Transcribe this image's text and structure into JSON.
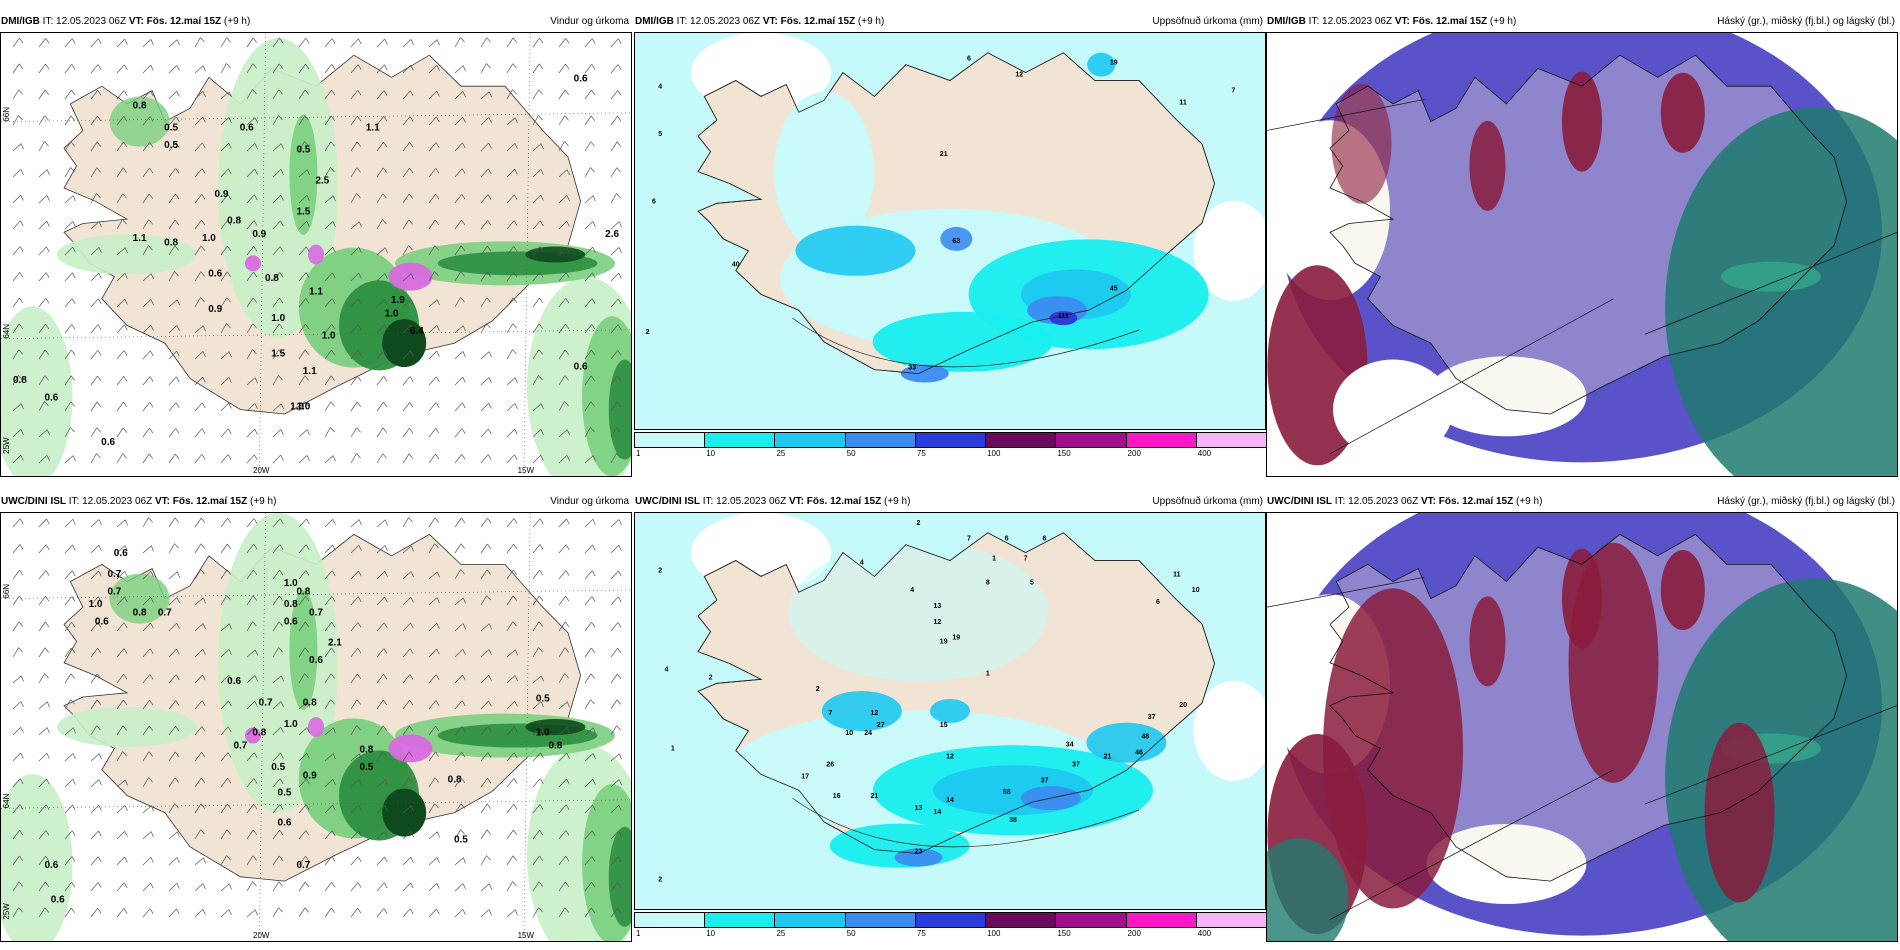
{
  "colors": {
    "land": "#f2e4d4",
    "sea": "#ffffff",
    "green1": "#c8efc8",
    "green2": "#7bcf80",
    "green3": "#2d8f40",
    "green4": "#0e4a1e",
    "magenta": "#d86ae0",
    "cyan1": "#b8f6f6",
    "cyan2": "#22e6e6",
    "blue1": "#3ba8f0",
    "blue2": "#2c4fd8",
    "blue3": "#3a2fa0",
    "cloud_high": "#8a1c3c",
    "cloud_mid": "#5a52c8",
    "cloud_low": "#1f7a6e"
  },
  "axis_labels": {
    "lat66": "66N",
    "lat64": "64N",
    "lon20": "20W",
    "lon15": "15W",
    "lon25": "25W"
  },
  "colorbar": {
    "ticks": [
      "1",
      "10",
      "25",
      "50",
      "75",
      "100",
      "150",
      "200",
      "400"
    ],
    "colors": [
      "#c6fafa",
      "#18eeee",
      "#1ec8f0",
      "#3c8cf0",
      "#2c3cd8",
      "#6a0a5a",
      "#a0108c",
      "#ff18c8",
      "#f6b4f6"
    ]
  },
  "rows": [
    {
      "model": "DMI/IGB",
      "init": "IT: 12.05.2023 06Z",
      "valid": "VT: Fös. 12.maí 15Z",
      "lead": "(+9 h)",
      "panels": [
        {
          "title": "Vindur og úrkoma",
          "labels": [
            "0.8",
            "0.5",
            "0.5",
            "0.6",
            "1.1",
            "0.5",
            "2.5",
            "0.9",
            "0.8",
            "1.5",
            "0.9",
            "1.1",
            "0.8",
            "1.0",
            "0.6",
            "0.8",
            "1.1",
            "1.0",
            "0.9",
            "1.0",
            "1.5",
            "1.1",
            "1.0",
            "1.9",
            "1.0",
            "6.4",
            "2.6",
            "0.6",
            "0.6",
            "0.8",
            "0.6",
            "1.0",
            "0.6"
          ]
        },
        {
          "title": "Uppsöfnuð úrkoma (mm)",
          "labels": [
            "6",
            "12",
            "19",
            "4",
            "11",
            "7",
            "5",
            "21",
            "6",
            "2",
            "40",
            "63",
            "45",
            "111",
            "33"
          ]
        },
        {
          "title": "Háský (gr.), miðský (fj.bl.) og lágský (bl.)"
        }
      ]
    },
    {
      "model": "UWC/DINI ISL",
      "init": "IT: 12.05.2023 06Z",
      "valid": "VT: Fös. 12.maí 15Z",
      "lead": "(+9 h)",
      "panels": [
        {
          "title": "Vindur og úrkoma",
          "labels": [
            "0.6",
            "0.7",
            "0.7",
            "1.0",
            "0.8",
            "0.7",
            "0.6",
            "1.0",
            "0.8",
            "0.8",
            "0.7",
            "0.6",
            "2.1",
            "0.6",
            "0.6",
            "0.7",
            "0.8",
            "1.0",
            "0.8",
            "0.7",
            "0.5",
            "0.9",
            "0.5",
            "0.8",
            "0.5",
            "0.6",
            "0.7",
            "0.8",
            "0.5",
            "1.0",
            "0.8",
            "0.5",
            "0.6",
            "0.6"
          ]
        },
        {
          "title": "Uppsöfnuð úrkoma (mm)",
          "labels": [
            "2",
            "7",
            "6",
            "6",
            "1",
            "7",
            "2",
            "4",
            "8",
            "5",
            "4",
            "19",
            "2",
            "4",
            "13",
            "6",
            "10",
            "12",
            "19",
            "2",
            "1",
            "1",
            "7",
            "12",
            "27",
            "24",
            "26",
            "15",
            "37",
            "20",
            "48",
            "46",
            "34",
            "10",
            "11",
            "12",
            "14",
            "17",
            "16",
            "21",
            "13",
            "14",
            "38",
            "58",
            "37",
            "37",
            "21",
            "23",
            "2"
          ]
        },
        {
          "title": "Háský (gr.), miðský (fj.bl.) og lágský (bl.)"
        }
      ]
    }
  ]
}
